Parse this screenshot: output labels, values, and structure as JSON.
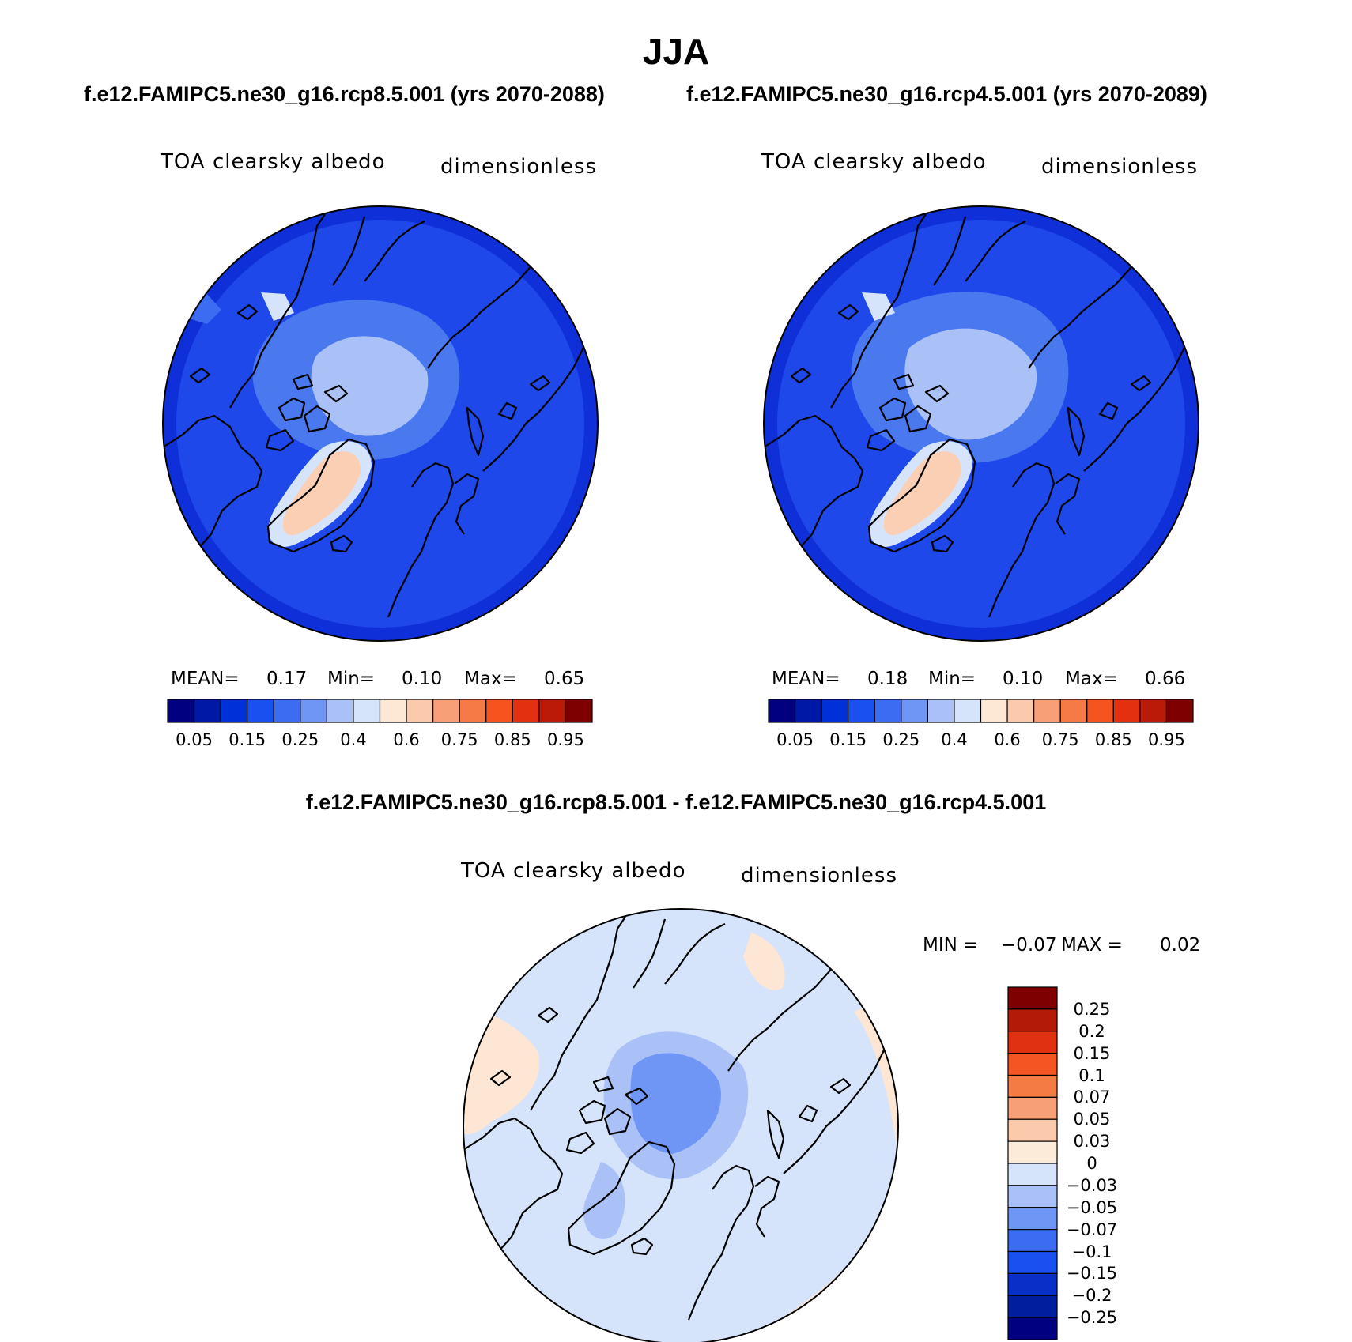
{
  "figure": {
    "title": "JJA",
    "case_a": "f.e12.FAMIPC5.ne30_g16.rcp8.5.001 (yrs 2070-2088)",
    "case_b": "f.e12.FAMIPC5.ne30_g16.rcp4.5.001 (yrs 2070-2089)",
    "diff_title": "f.e12.FAMIPC5.ne30_g16.rcp8.5.001 - f.e12.FAMIPC5.ne30_g16.rcp4.5.001"
  },
  "panels": [
    {
      "variable": "TOA clearsky albedo",
      "units": "dimensionless",
      "mean_label": "MEAN=",
      "mean": "0.17",
      "min_label": "Min=",
      "min": "0.10",
      "max_label": "Max=",
      "max": "0.65"
    },
    {
      "variable": "TOA clearsky albedo",
      "units": "dimensionless",
      "mean_label": "MEAN=",
      "mean": "0.18",
      "min_label": "Min=",
      "min": "0.10",
      "max_label": "Max=",
      "max": "0.66"
    }
  ],
  "diff_panel": {
    "variable": "TOA clearsky albedo",
    "units": "dimensionless",
    "min_label": "MIN =",
    "min": "−0.07",
    "max_label": "MAX =",
    "max": "0.02"
  },
  "colorbar_top": {
    "colors": [
      "#000080",
      "#0018a8",
      "#0030d8",
      "#1a4ff0",
      "#3b6cf2",
      "#6f95f5",
      "#a9c1f7",
      "#d6e4fb",
      "#fde8d6",
      "#fbc9ab",
      "#f7a077",
      "#f57a45",
      "#f5541e",
      "#e23010",
      "#bb1a08",
      "#7f0000"
    ],
    "tick_labels": [
      "0.05",
      "0.15",
      "0.25",
      "0.4",
      "0.6",
      "0.75",
      "0.85",
      "0.95"
    ]
  },
  "colorbar_diff": {
    "colors": [
      "#7f0000",
      "#b31a08",
      "#e03212",
      "#f55522",
      "#f57b45",
      "#f7a077",
      "#fbcaad",
      "#fdebd9",
      "#d6e4fb",
      "#a9c1f7",
      "#6f95f5",
      "#3b6cf2",
      "#1a4ff0",
      "#0830c8",
      "#001e9e",
      "#000080"
    ],
    "tick_labels": [
      "0.25",
      "0.2",
      "0.15",
      "0.1",
      "0.07",
      "0.05",
      "0.03",
      "0",
      "−0.03",
      "−0.05",
      "−0.07",
      "−0.1",
      "−0.15",
      "−0.2",
      "−0.25"
    ]
  }
}
